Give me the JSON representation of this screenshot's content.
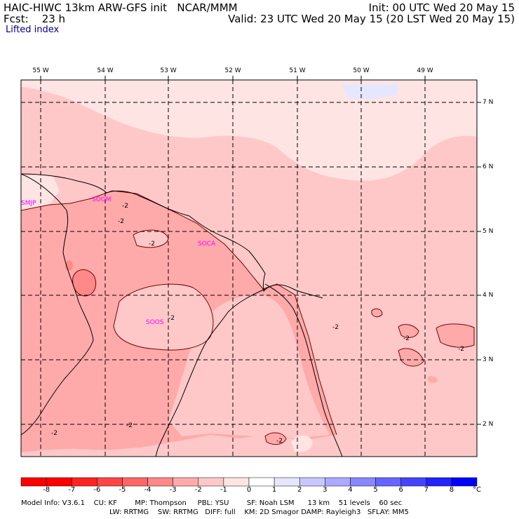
{
  "header": {
    "title": "HAIC-HIWC 13km ARW-GFS init   NCAR/MMM",
    "fcst": "Fcst:    23 h",
    "init": "Init: 00 UTC Wed 20 May 15",
    "valid": "Valid: 23 UTC Wed 20 May 15 (20 LST Wed 20 May 15)",
    "field": "Lifted index"
  },
  "lon_labels": [
    "55 W",
    "54 W",
    "53 W",
    "52 W",
    "51 W",
    "50 W",
    "49 W"
  ],
  "lat_labels": [
    "7 N",
    "6 N",
    "5 N",
    "4 N",
    "3 N",
    "2 N"
  ],
  "stations": [
    "SMJP",
    "SOGM",
    "SOCA",
    "SOOS"
  ],
  "contour_labels": [
    "-2",
    "-2",
    "-2",
    "-2",
    "-2",
    "-2",
    "-2",
    "-2",
    "-2",
    "-2"
  ],
  "colorbar": {
    "ticks": [
      "-8",
      "-7",
      "-6",
      "-5",
      "-4",
      "-3",
      "-2",
      "-1",
      "0",
      "1",
      "2",
      "3",
      "4",
      "5",
      "6",
      "7",
      "8"
    ],
    "unit": "°C",
    "colors": [
      "#ff0000",
      "#ff2222",
      "#ff4444",
      "#ff6666",
      "#ff8888",
      "#ffaaaa",
      "#ffc8c8",
      "#ffe4e4",
      "#ffffff",
      "#e6e6ff",
      "#c8c8ff",
      "#aaaaff",
      "#8888ff",
      "#6666ff",
      "#4444ff",
      "#2222ff",
      "#0000ff"
    ]
  },
  "footer": {
    "line1": "Model Info: V3.6.1    CU: KF        MP: Thompson     PBL: YSU        SF: Noah LSM      13 km    51 levels    60 sec",
    "line2": "LW: RRTMG    SW: RRTMG   DIFF: full    KM: 2D Smagor DAMP: Rayleigh3   SFLAY: MM5"
  }
}
